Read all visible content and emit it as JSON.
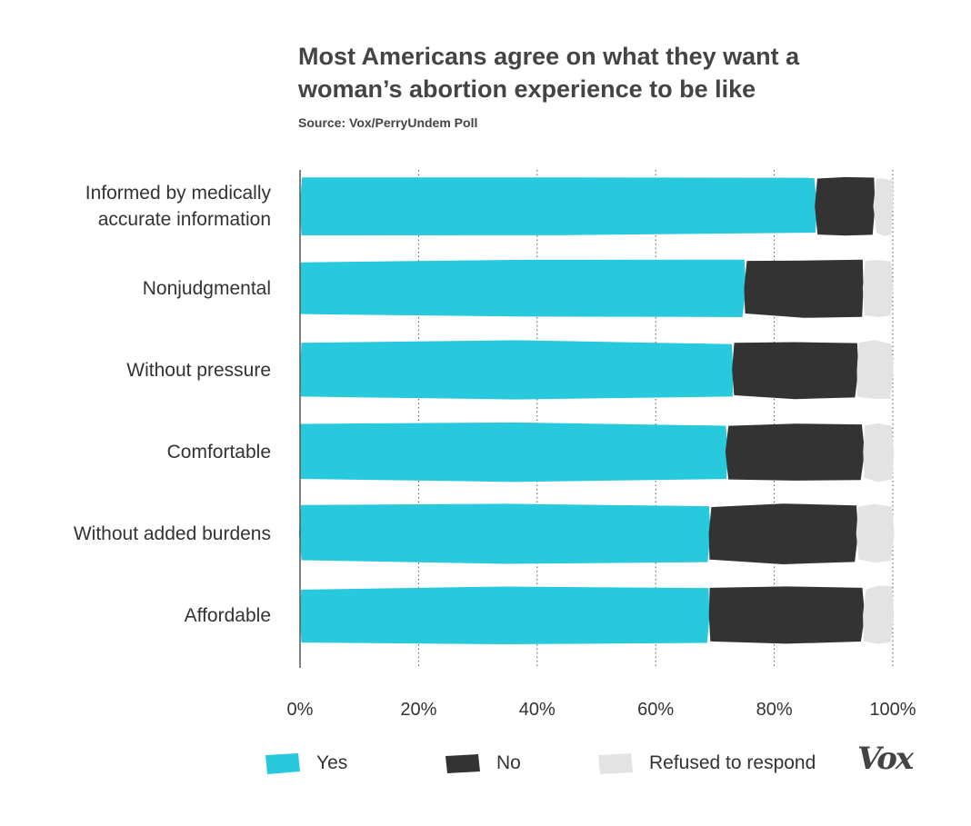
{
  "header": {
    "title": "Most Americans agree on what they want a woman’s abortion experience to be like",
    "source": "Source: Vox/PerryUndem Poll"
  },
  "chart_data": {
    "type": "bar",
    "orientation": "horizontal",
    "stacked": true,
    "title": "Most Americans agree on what they want a woman’s abortion experience to be like",
    "source": "Source: Vox/PerryUndem Poll",
    "categories": [
      "Informed by medically accurate information",
      "Nonjudgmental",
      "Without pressure",
      "Comfortable",
      "Without added burdens",
      "Affordable"
    ],
    "category_lines": [
      [
        "Informed by medically",
        "accurate information"
      ],
      [
        "Nonjudgmental"
      ],
      [
        "Without pressure"
      ],
      [
        "Comfortable"
      ],
      [
        "Without added burdens"
      ],
      [
        "Affordable"
      ]
    ],
    "series": [
      {
        "name": "Yes",
        "color": "#29c9dd",
        "values": [
          87,
          75,
          73,
          72,
          69,
          69
        ]
      },
      {
        "name": "No",
        "color": "#333333",
        "values": [
          10,
          20,
          21,
          23,
          25,
          26
        ]
      },
      {
        "name": "Refused to respond",
        "color": "#e3e3e3",
        "values": [
          3,
          5,
          6,
          5,
          6,
          5
        ]
      }
    ],
    "xlim": [
      0,
      100
    ],
    "xticks": [
      "0%",
      "20%",
      "40%",
      "60%",
      "80%",
      "100%"
    ],
    "grid": true,
    "legend_position": "bottom"
  },
  "legend": {
    "items": [
      {
        "label": "Yes",
        "color": "#29c9dd"
      },
      {
        "label": "No",
        "color": "#333333"
      },
      {
        "label": "Refused to respond",
        "color": "#e3e3e3"
      }
    ]
  },
  "brand": {
    "logo_text": "Vox"
  }
}
